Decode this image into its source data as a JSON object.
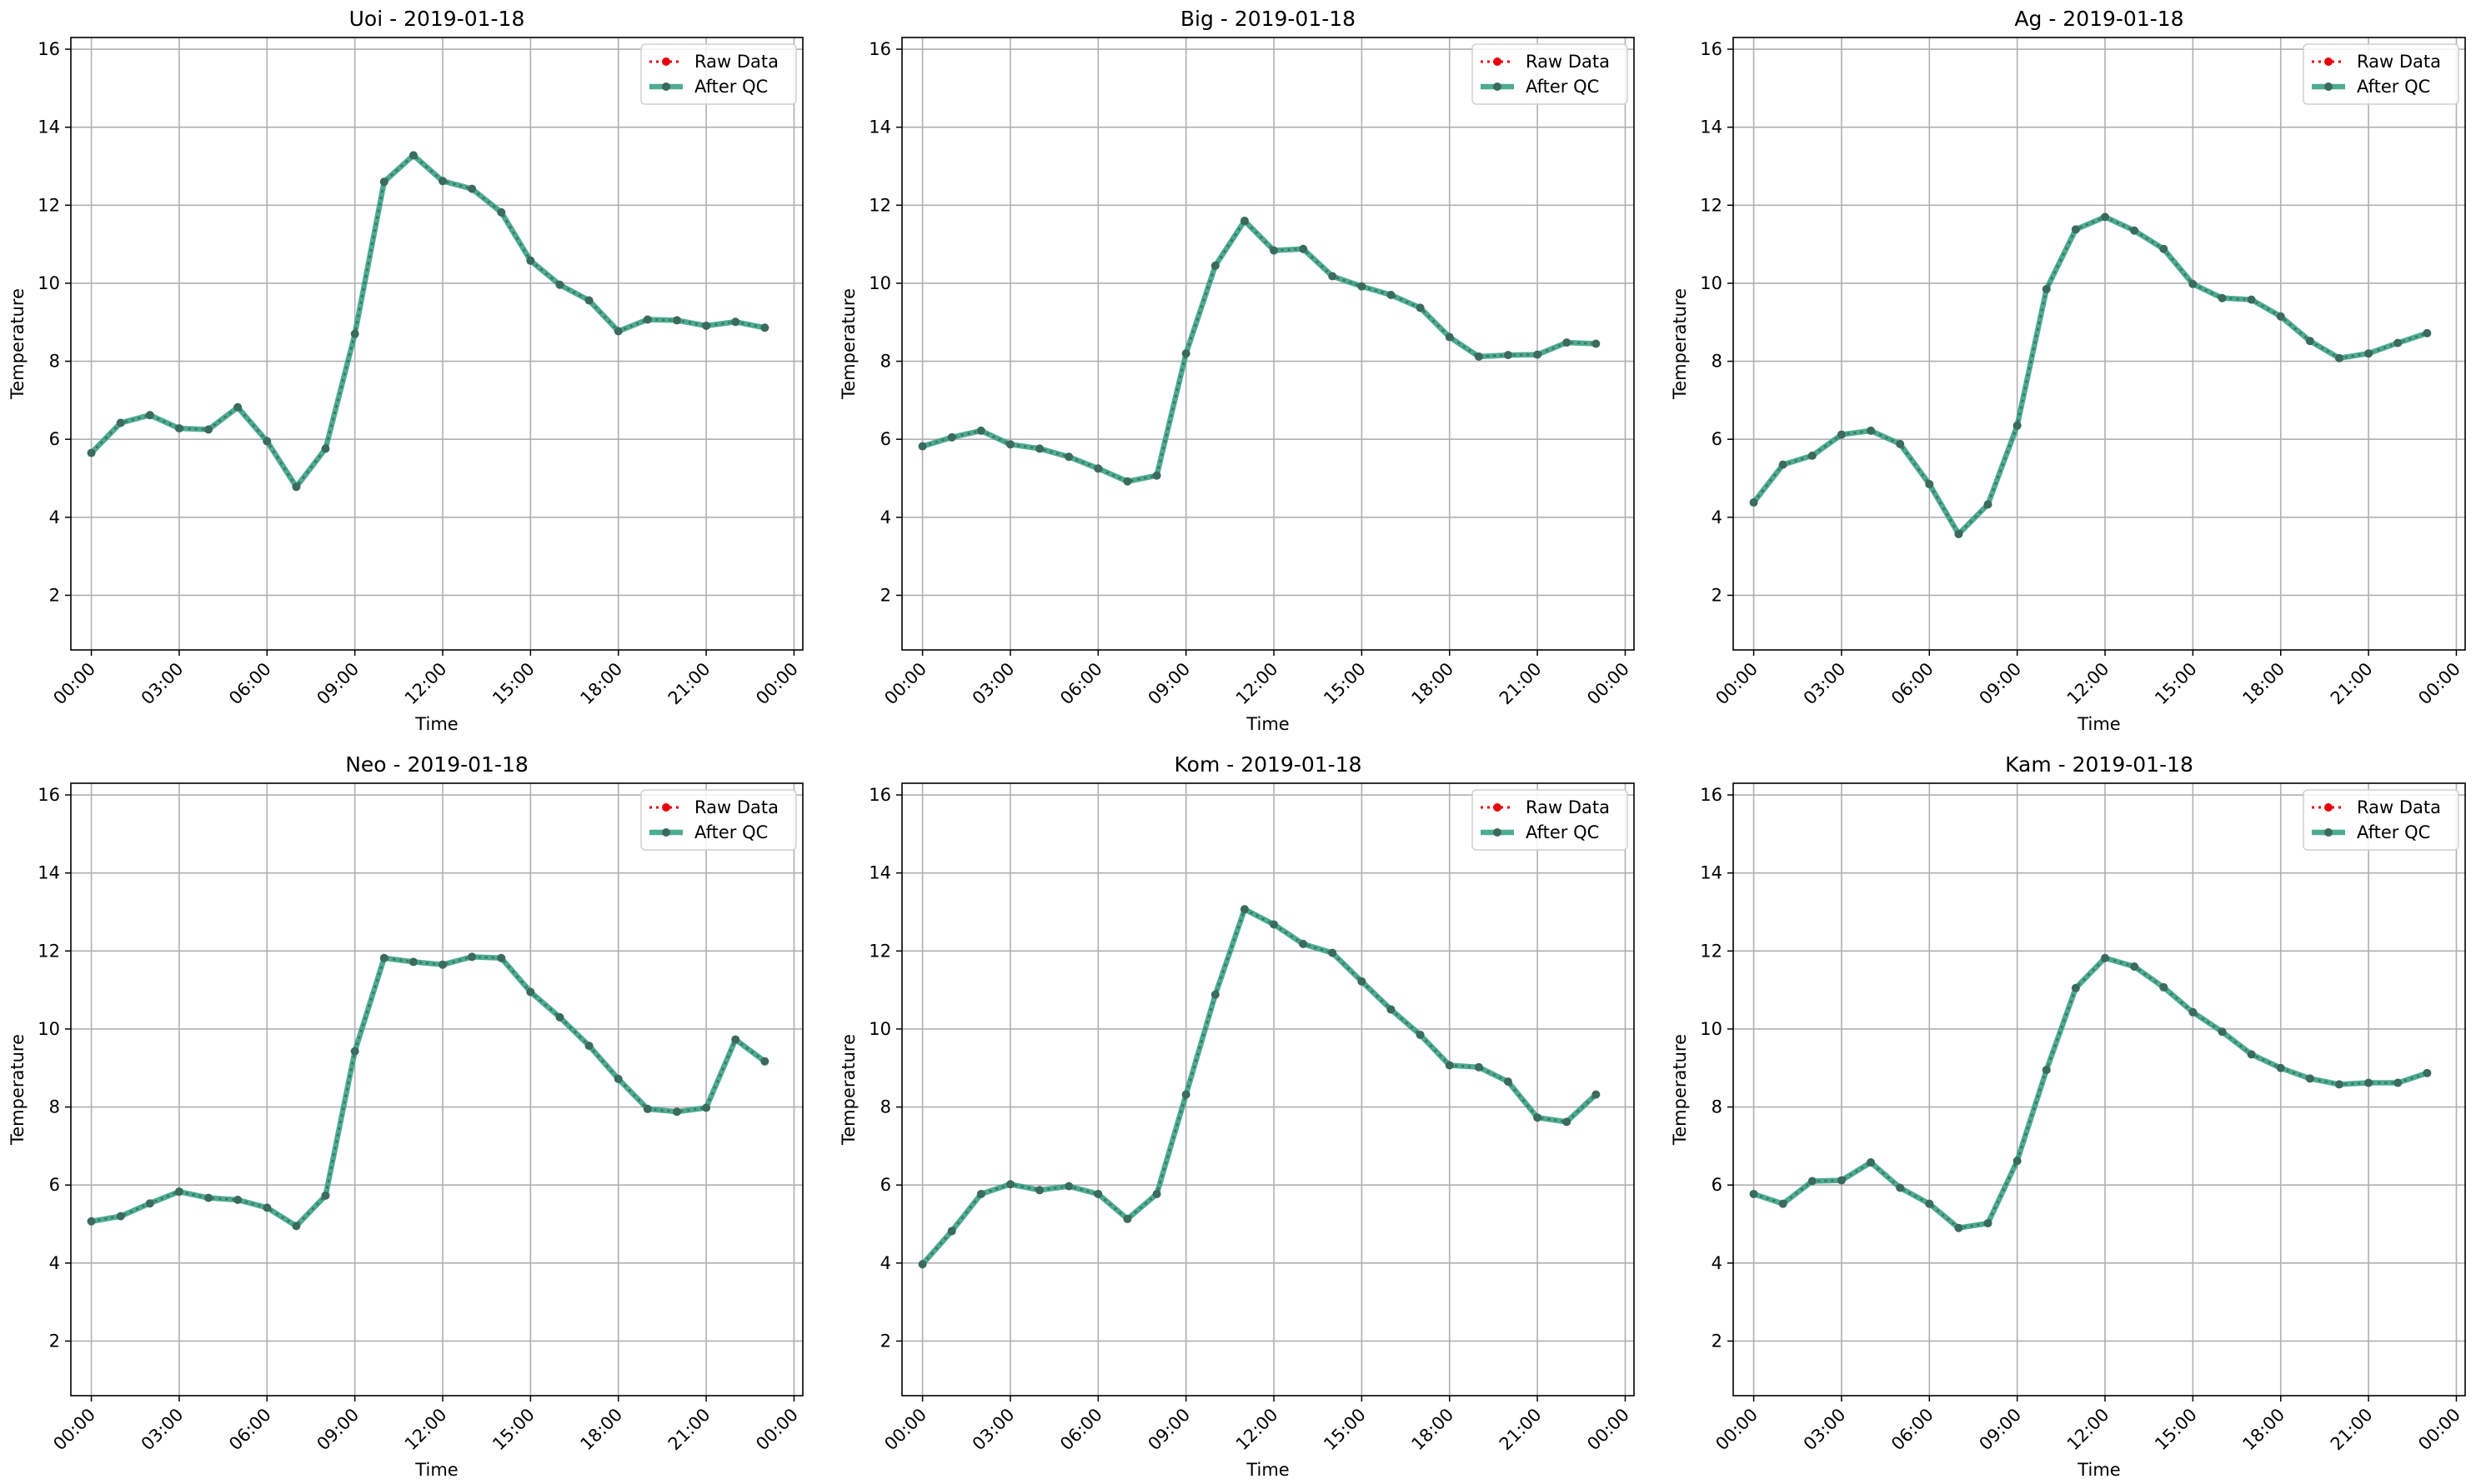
{
  "legend": {
    "raw_label": "Raw Data",
    "qc_label": "After QC"
  },
  "colors": {
    "raw": "#e8000b",
    "qc": "#2e9e7e",
    "marker": "#3a6b5c",
    "grid": "#b0b0b0"
  },
  "chart_data": [
    {
      "type": "line",
      "title": "Uoi - 2019-01-18",
      "xlabel": "Time",
      "ylabel": "Temperature",
      "x": [
        "00:00",
        "01:00",
        "02:00",
        "03:00",
        "04:00",
        "05:00",
        "06:00",
        "07:00",
        "08:00",
        "09:00",
        "10:00",
        "11:00",
        "12:00",
        "13:00",
        "14:00",
        "15:00",
        "16:00",
        "17:00",
        "18:00",
        "19:00",
        "20:00",
        "21:00",
        "22:00",
        "23:00"
      ],
      "xticks": [
        "00:00",
        "03:00",
        "06:00",
        "09:00",
        "12:00",
        "15:00",
        "18:00",
        "21:00",
        "00:00"
      ],
      "yticks": [
        2,
        4,
        6,
        8,
        10,
        12,
        14,
        16
      ],
      "ylim": [
        0.6,
        16.3
      ],
      "grid": true,
      "legend_position": "top-right",
      "series": [
        {
          "name": "Raw Data",
          "values": [
            5.65,
            6.42,
            6.62,
            6.28,
            6.25,
            6.82,
            5.95,
            4.78,
            5.76,
            8.7,
            12.6,
            13.28,
            12.62,
            12.42,
            11.82,
            10.58,
            9.96,
            9.56,
            8.77,
            9.07,
            9.05,
            8.91,
            9.01,
            8.86
          ]
        },
        {
          "name": "After QC",
          "values": [
            5.65,
            6.42,
            6.62,
            6.28,
            6.25,
            6.82,
            5.95,
            4.78,
            5.76,
            8.7,
            12.6,
            13.28,
            12.62,
            12.42,
            11.82,
            10.58,
            9.96,
            9.56,
            8.77,
            9.07,
            9.05,
            8.91,
            9.01,
            8.86
          ]
        }
      ]
    },
    {
      "type": "line",
      "title": "Big - 2019-01-18",
      "xlabel": "Time",
      "ylabel": "Temperature",
      "x": [
        "00:00",
        "01:00",
        "02:00",
        "03:00",
        "04:00",
        "05:00",
        "06:00",
        "07:00",
        "08:00",
        "09:00",
        "10:00",
        "11:00",
        "12:00",
        "13:00",
        "14:00",
        "15:00",
        "16:00",
        "17:00",
        "18:00",
        "19:00",
        "20:00",
        "21:00",
        "22:00",
        "23:00"
      ],
      "xticks": [
        "00:00",
        "03:00",
        "06:00",
        "09:00",
        "12:00",
        "15:00",
        "18:00",
        "21:00",
        "00:00"
      ],
      "yticks": [
        2,
        4,
        6,
        8,
        10,
        12,
        14,
        16
      ],
      "ylim": [
        0.6,
        16.3
      ],
      "grid": true,
      "legend_position": "top-right",
      "series": [
        {
          "name": "Raw Data",
          "values": [
            5.82,
            6.05,
            6.22,
            5.87,
            5.76,
            5.55,
            5.25,
            4.92,
            5.07,
            8.2,
            10.45,
            11.6,
            10.84,
            10.88,
            10.18,
            9.92,
            9.7,
            9.37,
            8.62,
            8.12,
            8.16,
            8.17,
            8.48,
            8.45
          ]
        },
        {
          "name": "After QC",
          "values": [
            5.82,
            6.05,
            6.22,
            5.87,
            5.76,
            5.55,
            5.25,
            4.92,
            5.07,
            8.2,
            10.45,
            11.6,
            10.84,
            10.88,
            10.18,
            9.92,
            9.7,
            9.37,
            8.62,
            8.12,
            8.16,
            8.17,
            8.48,
            8.45
          ]
        }
      ]
    },
    {
      "type": "line",
      "title": "Ag - 2019-01-18",
      "xlabel": "Time",
      "ylabel": "Temperature",
      "x": [
        "00:00",
        "01:00",
        "02:00",
        "03:00",
        "04:00",
        "05:00",
        "06:00",
        "07:00",
        "08:00",
        "09:00",
        "10:00",
        "11:00",
        "12:00",
        "13:00",
        "14:00",
        "15:00",
        "16:00",
        "17:00",
        "18:00",
        "19:00",
        "20:00",
        "21:00",
        "22:00",
        "23:00"
      ],
      "xticks": [
        "00:00",
        "03:00",
        "06:00",
        "09:00",
        "12:00",
        "15:00",
        "18:00",
        "21:00",
        "00:00"
      ],
      "yticks": [
        2,
        4,
        6,
        8,
        10,
        12,
        14,
        16
      ],
      "ylim": [
        0.6,
        16.3
      ],
      "grid": true,
      "legend_position": "top-right",
      "series": [
        {
          "name": "Raw Data",
          "values": [
            4.38,
            5.35,
            5.58,
            6.12,
            6.22,
            5.88,
            4.85,
            3.57,
            4.33,
            6.35,
            9.85,
            11.38,
            11.7,
            11.35,
            10.88,
            9.98,
            9.62,
            9.58,
            9.15,
            8.52,
            8.08,
            8.2,
            8.47,
            8.72
          ]
        },
        {
          "name": "After QC",
          "values": [
            4.38,
            5.35,
            5.58,
            6.12,
            6.22,
            5.88,
            4.85,
            3.57,
            4.33,
            6.35,
            9.85,
            11.38,
            11.7,
            11.35,
            10.88,
            9.98,
            9.62,
            9.58,
            9.15,
            8.52,
            8.08,
            8.2,
            8.47,
            8.72
          ]
        }
      ]
    },
    {
      "type": "line",
      "title": "Neo - 2019-01-18",
      "xlabel": "Time",
      "ylabel": "Temperature",
      "x": [
        "00:00",
        "01:00",
        "02:00",
        "03:00",
        "04:00",
        "05:00",
        "06:00",
        "07:00",
        "08:00",
        "09:00",
        "10:00",
        "11:00",
        "12:00",
        "13:00",
        "14:00",
        "15:00",
        "16:00",
        "17:00",
        "18:00",
        "19:00",
        "20:00",
        "21:00",
        "22:00",
        "23:00"
      ],
      "xticks": [
        "00:00",
        "03:00",
        "06:00",
        "09:00",
        "12:00",
        "15:00",
        "18:00",
        "21:00",
        "00:00"
      ],
      "yticks": [
        2,
        4,
        6,
        8,
        10,
        12,
        14,
        16
      ],
      "ylim": [
        0.6,
        16.3
      ],
      "grid": true,
      "legend_position": "top-right",
      "series": [
        {
          "name": "Raw Data",
          "values": [
            5.07,
            5.2,
            5.53,
            5.83,
            5.67,
            5.62,
            5.42,
            4.95,
            5.73,
            9.43,
            11.82,
            11.72,
            11.65,
            11.85,
            11.82,
            10.95,
            10.3,
            9.57,
            8.72,
            7.95,
            7.88,
            7.98,
            9.73,
            9.17
          ]
        },
        {
          "name": "After QC",
          "values": [
            5.07,
            5.2,
            5.53,
            5.83,
            5.67,
            5.62,
            5.42,
            4.95,
            5.73,
            9.43,
            11.82,
            11.72,
            11.65,
            11.85,
            11.82,
            10.95,
            10.3,
            9.57,
            8.72,
            7.95,
            7.88,
            7.98,
            9.73,
            9.17
          ]
        }
      ]
    },
    {
      "type": "line",
      "title": "Kom - 2019-01-18",
      "xlabel": "Time",
      "ylabel": "Temperature",
      "x": [
        "00:00",
        "01:00",
        "02:00",
        "03:00",
        "04:00",
        "05:00",
        "06:00",
        "07:00",
        "08:00",
        "09:00",
        "10:00",
        "11:00",
        "12:00",
        "13:00",
        "14:00",
        "15:00",
        "16:00",
        "17:00",
        "18:00",
        "19:00",
        "20:00",
        "21:00",
        "22:00",
        "23:00"
      ],
      "xticks": [
        "00:00",
        "03:00",
        "06:00",
        "09:00",
        "12:00",
        "15:00",
        "18:00",
        "21:00",
        "00:00"
      ],
      "yticks": [
        2,
        4,
        6,
        8,
        10,
        12,
        14,
        16
      ],
      "ylim": [
        0.6,
        16.3
      ],
      "grid": true,
      "legend_position": "top-right",
      "series": [
        {
          "name": "Raw Data",
          "values": [
            3.97,
            4.82,
            5.77,
            6.02,
            5.87,
            5.97,
            5.77,
            5.13,
            5.77,
            8.32,
            10.88,
            13.07,
            12.68,
            12.18,
            11.95,
            11.22,
            10.5,
            9.85,
            9.07,
            9.02,
            8.65,
            7.73,
            7.62,
            8.32
          ]
        },
        {
          "name": "After QC",
          "values": [
            3.97,
            4.82,
            5.77,
            6.02,
            5.87,
            5.97,
            5.77,
            5.13,
            5.77,
            8.32,
            10.88,
            13.07,
            12.68,
            12.18,
            11.95,
            11.22,
            10.5,
            9.85,
            9.07,
            9.02,
            8.65,
            7.73,
            7.62,
            8.32
          ]
        }
      ]
    },
    {
      "type": "line",
      "title": "Kam - 2019-01-18",
      "xlabel": "Time",
      "ylabel": "Temperature",
      "x": [
        "00:00",
        "01:00",
        "02:00",
        "03:00",
        "04:00",
        "05:00",
        "06:00",
        "07:00",
        "08:00",
        "09:00",
        "10:00",
        "11:00",
        "12:00",
        "13:00",
        "14:00",
        "15:00",
        "16:00",
        "17:00",
        "18:00",
        "19:00",
        "20:00",
        "21:00",
        "22:00",
        "23:00"
      ],
      "xticks": [
        "00:00",
        "03:00",
        "06:00",
        "09:00",
        "12:00",
        "15:00",
        "18:00",
        "21:00",
        "00:00"
      ],
      "yticks": [
        2,
        4,
        6,
        8,
        10,
        12,
        14,
        16
      ],
      "ylim": [
        0.6,
        16.3
      ],
      "grid": true,
      "legend_position": "top-right",
      "series": [
        {
          "name": "Raw Data",
          "values": [
            5.77,
            5.52,
            6.1,
            6.12,
            6.58,
            5.93,
            5.52,
            4.9,
            5.02,
            6.62,
            8.95,
            11.05,
            11.82,
            11.6,
            11.07,
            10.43,
            9.93,
            9.35,
            9.0,
            8.73,
            8.58,
            8.62,
            8.62,
            8.87
          ]
        },
        {
          "name": "After QC",
          "values": [
            5.77,
            5.52,
            6.1,
            6.12,
            6.58,
            5.93,
            5.52,
            4.9,
            5.02,
            6.62,
            8.95,
            11.05,
            11.82,
            11.6,
            11.07,
            10.43,
            9.93,
            9.35,
            9.0,
            8.73,
            8.58,
            8.62,
            8.62,
            8.87
          ]
        }
      ]
    }
  ]
}
